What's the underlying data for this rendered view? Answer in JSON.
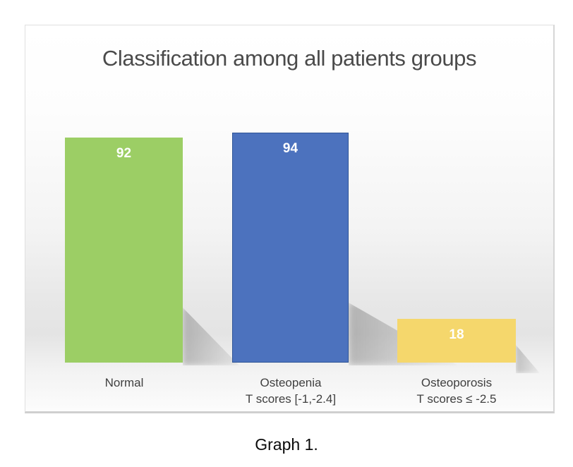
{
  "page": {
    "caption": "Graph 1."
  },
  "chart_data": {
    "type": "bar",
    "title": "Classification among all patients groups",
    "categories": [
      "Normal",
      "Osteopenia",
      "Osteoporosis"
    ],
    "category_sublabels": [
      "",
      "T scores [-1,-2.4]",
      "T scores ≤ -2.5"
    ],
    "values": [
      92,
      94,
      18
    ],
    "bar_colors": [
      "#9CCE65",
      "#4C72BE",
      "#F5D76C"
    ],
    "bar_border_colors": [
      "#9CCE65",
      "#2F5597",
      "#F5D76C"
    ],
    "value_label_color": "#FFFFFF",
    "title_color": "#4A4A4A",
    "category_label_color": "#404040",
    "xlabel": "",
    "ylabel": "",
    "ylim": [
      0,
      100
    ],
    "axes_visible": false,
    "gridlines": false,
    "legend": "none",
    "value_labels_position": "inside-top"
  }
}
